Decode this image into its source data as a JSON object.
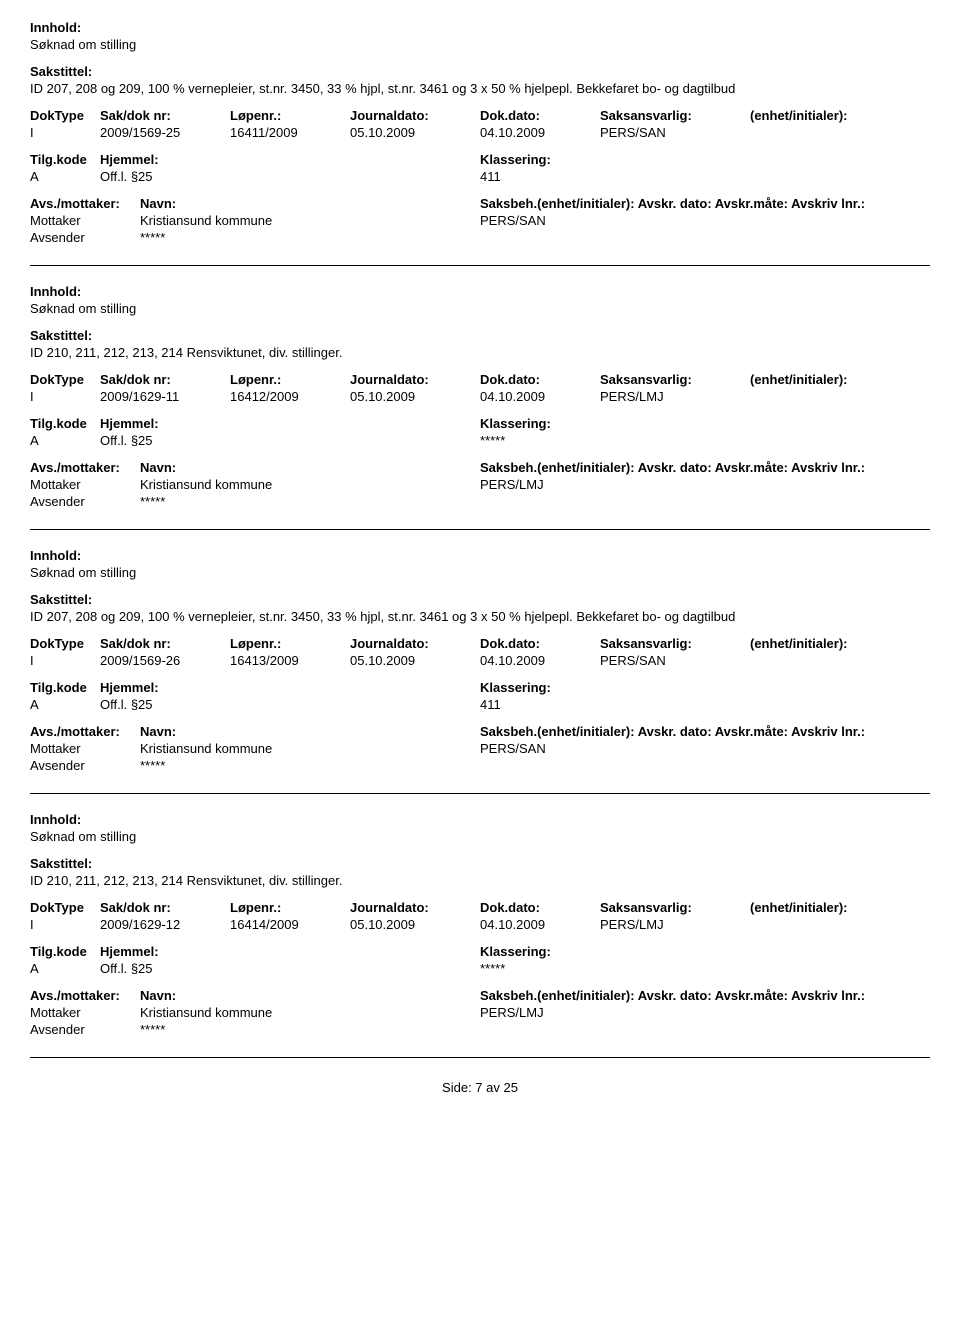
{
  "labels": {
    "innhold": "Innhold:",
    "sakstittel": "Sakstittel:",
    "doktype": "DokType",
    "sakdoknr": "Sak/dok nr:",
    "lopenr": "Løpenr.:",
    "journaldato": "Journaldato:",
    "dokdato": "Dok.dato:",
    "saksansvarlig": "Saksansvarlig:",
    "enhetinitialer": "(enhet/initialer):",
    "tilgkode": "Tilg.kode",
    "hjemmel": "Hjemmel:",
    "klassering": "Klassering:",
    "avsmottaker": "Avs./mottaker:",
    "navn": "Navn:",
    "saksbeh": "Saksbeh.(enhet/initialer): Avskr. dato: Avskr.måte: Avskriv lnr.:",
    "mottaker": "Mottaker",
    "avsender": "Avsender"
  },
  "entries": [
    {
      "innhold": "Søknad om stilling",
      "sakstittel": "ID 207, 208 og 209, 100 % vernepleier, st.nr. 3450, 33 % hjpl, st.nr. 3461 og 3 x 50 % hjelpepl. Bekkefaret bo- og dagtilbud",
      "doktype": "I",
      "sakdok": "2009/1569-25",
      "lopenr": "16411/2009",
      "journaldato": "05.10.2009",
      "dokdato": "04.10.2009",
      "saksansvarlig": "PERS/SAN",
      "enhet": "",
      "tilgkode": "A",
      "hjemmel": "Off.l. §25",
      "klassering": "411",
      "mottaker_navn": "Kristiansund kommune",
      "mottaker_saksbeh": "PERS/SAN",
      "avsender_navn": "*****"
    },
    {
      "innhold": "Søknad om stilling",
      "sakstittel": "ID 210, 211, 212, 213, 214  Rensviktunet, div. stillinger.",
      "doktype": "I",
      "sakdok": "2009/1629-11",
      "lopenr": "16412/2009",
      "journaldato": "05.10.2009",
      "dokdato": "04.10.2009",
      "saksansvarlig": "PERS/LMJ",
      "enhet": "",
      "tilgkode": "A",
      "hjemmel": "Off.l. §25",
      "klassering": "*****",
      "mottaker_navn": "Kristiansund kommune",
      "mottaker_saksbeh": "PERS/LMJ",
      "avsender_navn": "*****"
    },
    {
      "innhold": "Søknad om stilling",
      "sakstittel": "ID 207, 208 og 209, 100 % vernepleier, st.nr. 3450, 33 % hjpl, st.nr. 3461 og 3 x 50 % hjelpepl. Bekkefaret bo- og dagtilbud",
      "doktype": "I",
      "sakdok": "2009/1569-26",
      "lopenr": "16413/2009",
      "journaldato": "05.10.2009",
      "dokdato": "04.10.2009",
      "saksansvarlig": "PERS/SAN",
      "enhet": "",
      "tilgkode": "A",
      "hjemmel": "Off.l. §25",
      "klassering": "411",
      "mottaker_navn": "Kristiansund kommune",
      "mottaker_saksbeh": "PERS/SAN",
      "avsender_navn": "*****"
    },
    {
      "innhold": "Søknad om stilling",
      "sakstittel": "ID 210, 211, 212, 213, 214  Rensviktunet, div. stillinger.",
      "doktype": "I",
      "sakdok": "2009/1629-12",
      "lopenr": "16414/2009",
      "journaldato": "05.10.2009",
      "dokdato": "04.10.2009",
      "saksansvarlig": "PERS/LMJ",
      "enhet": "",
      "tilgkode": "A",
      "hjemmel": "Off.l. §25",
      "klassering": "*****",
      "mottaker_navn": "Kristiansund kommune",
      "mottaker_saksbeh": "PERS/LMJ",
      "avsender_navn": "*****"
    }
  ],
  "footer": "Side:  7 av  25"
}
